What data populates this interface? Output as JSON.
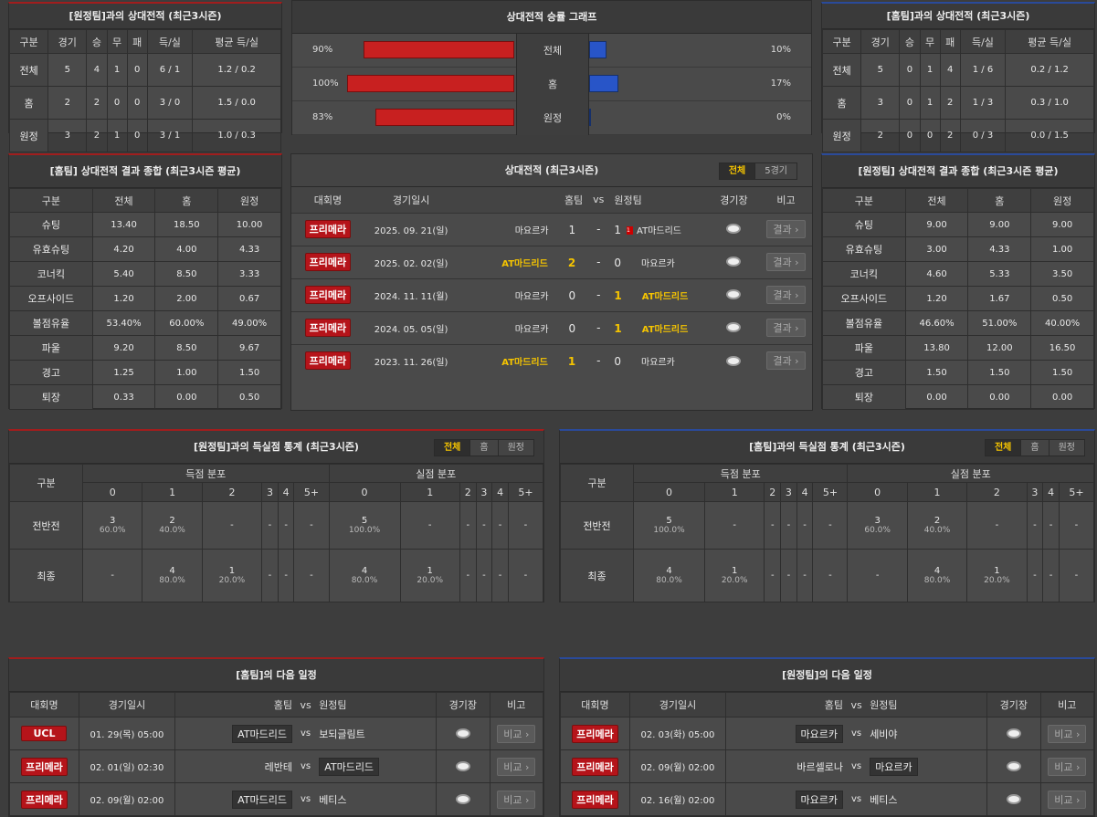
{
  "away_h2h": {
    "title": "[원정팀]과의 상대전적 (최근3시즌)",
    "headers": [
      "구분",
      "경기",
      "승",
      "무",
      "패",
      "득/실",
      "평균 득/실"
    ],
    "rows": [
      [
        "전체",
        "5",
        "4",
        "1",
        "0",
        "6 / 1",
        "1.2 / 0.2"
      ],
      [
        "홈",
        "2",
        "2",
        "0",
        "0",
        "3 / 0",
        "1.5 / 0.0"
      ],
      [
        "원정",
        "3",
        "2",
        "1",
        "0",
        "3 / 1",
        "1.0 / 0.3"
      ]
    ]
  },
  "graph": {
    "title": "상대전적 승률 그래프",
    "rows": [
      {
        "label": "전체",
        "left": "90%",
        "right": "10%",
        "lv": 90,
        "rv": 10
      },
      {
        "label": "홈",
        "left": "100%",
        "right": "17%",
        "lv": 100,
        "rv": 17
      },
      {
        "label": "원정",
        "left": "83%",
        "right": "0%",
        "lv": 83,
        "rv": 0
      }
    ]
  },
  "home_h2h": {
    "title": "[홈팀]과의 상대전적 (최근3시즌)",
    "headers": [
      "구분",
      "경기",
      "승",
      "무",
      "패",
      "득/실",
      "평균 득/실"
    ],
    "rows": [
      [
        "전체",
        "5",
        "0",
        "1",
        "4",
        "1 / 6",
        "0.2 / 1.2"
      ],
      [
        "홈",
        "3",
        "0",
        "1",
        "2",
        "1 / 3",
        "0.3 / 1.0"
      ],
      [
        "원정",
        "2",
        "0",
        "0",
        "2",
        "0 / 3",
        "0.0 / 1.5"
      ]
    ]
  },
  "home_summary": {
    "title": "[홈팀] 상대전적 결과 종합 (최근3시즌 평균)",
    "headers": [
      "구분",
      "전체",
      "홈",
      "원정"
    ],
    "rows": [
      [
        "슈팅",
        "13.40",
        "18.50",
        "10.00"
      ],
      [
        "유효슈팅",
        "4.20",
        "4.00",
        "4.33"
      ],
      [
        "코너킥",
        "5.40",
        "8.50",
        "3.33"
      ],
      [
        "오프사이드",
        "1.20",
        "2.00",
        "0.67"
      ],
      [
        "볼점유율",
        "53.40%",
        "60.00%",
        "49.00%"
      ],
      [
        "파울",
        "9.20",
        "8.50",
        "9.67"
      ],
      [
        "경고",
        "1.25",
        "1.00",
        "1.50"
      ],
      [
        "퇴장",
        "0.33",
        "0.00",
        "0.50"
      ]
    ]
  },
  "h2h_matches": {
    "title": "상대전적 (최근3시즌)",
    "tabs": [
      "전체",
      "5경기"
    ],
    "headers": {
      "league": "대회명",
      "date": "경기일시",
      "home": "홈팀",
      "vs": "vs",
      "away": "원정팀",
      "stadium": "경기장",
      "note": "비고"
    },
    "result_label": "결과 ›",
    "card": "1",
    "rows": [
      {
        "league": "프리메라",
        "date": "2025. 09. 21(일)",
        "home": "마요르카",
        "hs": "1",
        "as": "1",
        "away": "AT마드리드",
        "win": "none",
        "card": true
      },
      {
        "league": "프리메라",
        "date": "2025. 02. 02(일)",
        "home": "AT마드리드",
        "hs": "2",
        "as": "0",
        "away": "마요르카",
        "win": "home",
        "card": false
      },
      {
        "league": "프리메라",
        "date": "2024. 11. 11(월)",
        "home": "마요르카",
        "hs": "0",
        "as": "1",
        "away": "AT마드리드",
        "win": "away",
        "card": false
      },
      {
        "league": "프리메라",
        "date": "2024. 05. 05(일)",
        "home": "마요르카",
        "hs": "0",
        "as": "1",
        "away": "AT마드리드",
        "win": "away",
        "card": false
      },
      {
        "league": "프리메라",
        "date": "2023. 11. 26(일)",
        "home": "AT마드리드",
        "hs": "1",
        "as": "0",
        "away": "마요르카",
        "win": "home",
        "card": false
      }
    ]
  },
  "away_summary": {
    "title": "[원정팀] 상대전적 결과 종합 (최근3시즌 평균)",
    "headers": [
      "구분",
      "전체",
      "홈",
      "원정"
    ],
    "rows": [
      [
        "슈팅",
        "9.00",
        "9.00",
        "9.00"
      ],
      [
        "유효슈팅",
        "3.00",
        "4.33",
        "1.00"
      ],
      [
        "코너킥",
        "4.60",
        "5.33",
        "3.50"
      ],
      [
        "오프사이드",
        "1.20",
        "1.67",
        "0.50"
      ],
      [
        "볼점유율",
        "46.60%",
        "51.00%",
        "40.00%"
      ],
      [
        "파울",
        "13.80",
        "12.00",
        "16.50"
      ],
      [
        "경고",
        "1.50",
        "1.50",
        "1.50"
      ],
      [
        "퇴장",
        "0.00",
        "0.00",
        "0.00"
      ]
    ]
  },
  "goal_stats_away": {
    "title": "[원정팀]과의 득실점 통계 (최근3시즌)",
    "tabs": [
      "전체",
      "홈",
      "원정"
    ],
    "col_label": "구분",
    "for_label": "득점 분포",
    "against_label": "실점 분포",
    "goals": [
      "0",
      "1",
      "2",
      "3",
      "4",
      "5+"
    ],
    "rows": [
      {
        "label": "전반전",
        "for": [
          [
            "3",
            "60.0%"
          ],
          [
            "2",
            "40.0%"
          ],
          [
            "-",
            ""
          ],
          [
            "-",
            ""
          ],
          [
            "-",
            ""
          ],
          [
            "-",
            ""
          ]
        ],
        "against": [
          [
            "5",
            "100.0%"
          ],
          [
            "-",
            ""
          ],
          [
            "-",
            ""
          ],
          [
            "-",
            ""
          ],
          [
            "-",
            ""
          ],
          [
            "-",
            ""
          ]
        ]
      },
      {
        "label": "최종",
        "for": [
          [
            "-",
            ""
          ],
          [
            "4",
            "80.0%"
          ],
          [
            "1",
            "20.0%"
          ],
          [
            "-",
            ""
          ],
          [
            "-",
            ""
          ],
          [
            "-",
            ""
          ]
        ],
        "against": [
          [
            "4",
            "80.0%"
          ],
          [
            "1",
            "20.0%"
          ],
          [
            "-",
            ""
          ],
          [
            "-",
            ""
          ],
          [
            "-",
            ""
          ],
          [
            "-",
            ""
          ]
        ]
      }
    ]
  },
  "goal_stats_home": {
    "title": "[홈팀]과의 득실점 통계 (최근3시즌)",
    "tabs": [
      "전체",
      "홈",
      "원정"
    ],
    "col_label": "구분",
    "for_label": "득점 분포",
    "against_label": "실점 분포",
    "goals": [
      "0",
      "1",
      "2",
      "3",
      "4",
      "5+"
    ],
    "rows": [
      {
        "label": "전반전",
        "for": [
          [
            "5",
            "100.0%"
          ],
          [
            "-",
            ""
          ],
          [
            "-",
            ""
          ],
          [
            "-",
            ""
          ],
          [
            "-",
            ""
          ],
          [
            "-",
            ""
          ]
        ],
        "against": [
          [
            "3",
            "60.0%"
          ],
          [
            "2",
            "40.0%"
          ],
          [
            "-",
            ""
          ],
          [
            "-",
            ""
          ],
          [
            "-",
            ""
          ],
          [
            "-",
            ""
          ]
        ]
      },
      {
        "label": "최종",
        "for": [
          [
            "4",
            "80.0%"
          ],
          [
            "1",
            "20.0%"
          ],
          [
            "-",
            ""
          ],
          [
            "-",
            ""
          ],
          [
            "-",
            ""
          ],
          [
            "-",
            ""
          ]
        ],
        "against": [
          [
            "-",
            ""
          ],
          [
            "4",
            "80.0%"
          ],
          [
            "1",
            "20.0%"
          ],
          [
            "-",
            ""
          ],
          [
            "-",
            ""
          ],
          [
            "-",
            ""
          ]
        ]
      }
    ]
  },
  "home_next": {
    "title": "[홈팀]의 다음 일정",
    "headers": {
      "league": "대회명",
      "date": "경기일시",
      "home": "홈팀",
      "vs": "vs",
      "away": "원정팀",
      "stadium": "경기장",
      "note": "비고"
    },
    "compare_label": "비교 ›",
    "rows": [
      {
        "league": "UCL",
        "date": "01. 29(목) 05:00",
        "home": "AT마드리드",
        "away": "보되글림트",
        "box": "home"
      },
      {
        "league": "프리메라",
        "date": "02. 01(일) 02:30",
        "home": "레반테",
        "away": "AT마드리드",
        "box": "away"
      },
      {
        "league": "프리메라",
        "date": "02. 09(월) 02:00",
        "home": "AT마드리드",
        "away": "베티스",
        "box": "home"
      }
    ]
  },
  "away_next": {
    "title": "[원정팀]의 다음 일정",
    "headers": {
      "league": "대회명",
      "date": "경기일시",
      "home": "홈팀",
      "vs": "vs",
      "away": "원정팀",
      "stadium": "경기장",
      "note": "비고"
    },
    "compare_label": "비교 ›",
    "rows": [
      {
        "league": "프리메라",
        "date": "02. 03(화) 05:00",
        "home": "마요르카",
        "away": "세비야",
        "box": "home"
      },
      {
        "league": "프리메라",
        "date": "02. 09(월) 02:00",
        "home": "바르셀로나",
        "away": "마요르카",
        "box": "away"
      },
      {
        "league": "프리메라",
        "date": "02. 16(월) 02:00",
        "home": "마요르카",
        "away": "베티스",
        "box": "home"
      }
    ]
  }
}
